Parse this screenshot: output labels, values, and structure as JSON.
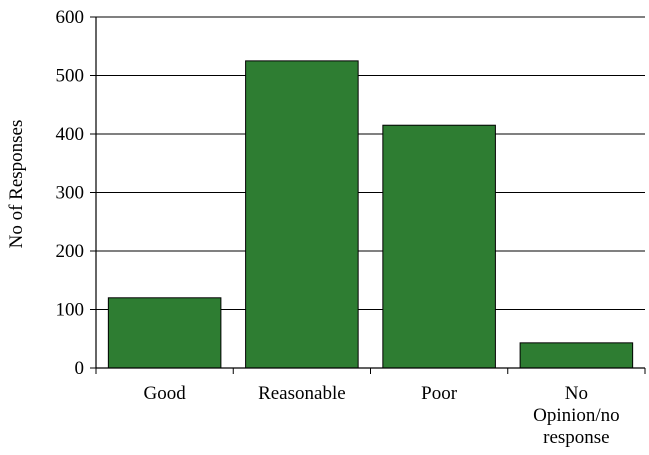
{
  "chart_data": {
    "type": "bar",
    "title": "",
    "xlabel": "",
    "ylabel": "No of Responses",
    "categories": [
      [
        "Good"
      ],
      [
        "Reasonable"
      ],
      [
        "Poor"
      ],
      [
        "No",
        "Opinion/no",
        "response"
      ]
    ],
    "values": [
      120,
      525,
      415,
      43
    ],
    "ylim": [
      0,
      600
    ],
    "yticks": [
      "0",
      "100",
      "200",
      "300",
      "400",
      "500",
      "600"
    ],
    "grid": true,
    "legend": "none",
    "bar_color": "#2e7d32",
    "bar_stroke": "#000000"
  }
}
